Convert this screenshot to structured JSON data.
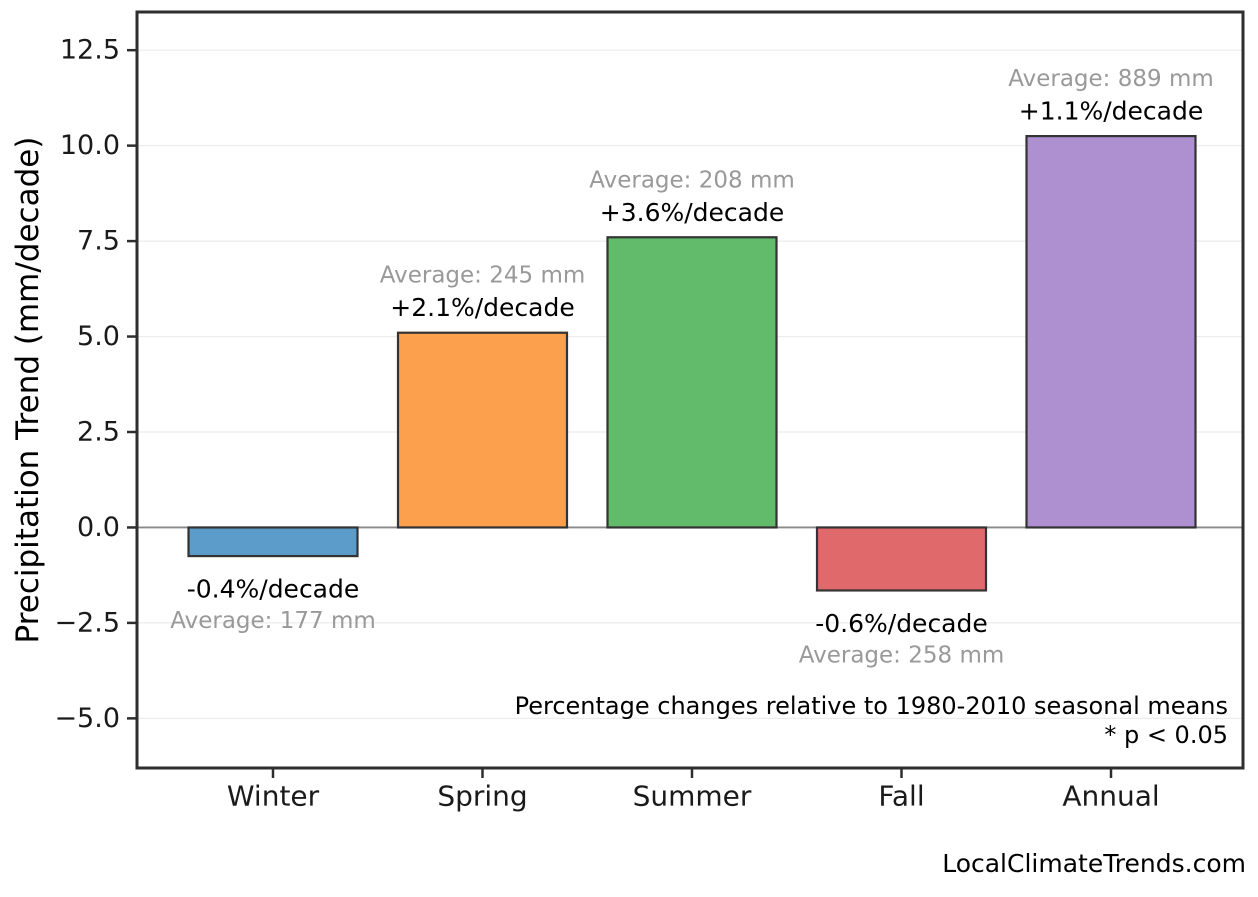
{
  "chart_data": {
    "type": "bar",
    "title": "",
    "xlabel": "",
    "ylabel": "Precipitation Trend (mm/decade)",
    "categories": [
      "Winter",
      "Spring",
      "Summer",
      "Fall",
      "Annual"
    ],
    "values": [
      -0.75,
      5.1,
      7.6,
      -1.65,
      10.25
    ],
    "bar_colors": [
      "#5B9CCA",
      "#FCA04E",
      "#62BB6A",
      "#E0696B",
      "#AE8FCF"
    ],
    "bar_edge_color": "#333333",
    "bar_labels": [
      {
        "pct": "-0.4%/decade",
        "avg": "Average: 177 mm"
      },
      {
        "pct": "+2.1%/decade",
        "avg": "Average: 245 mm"
      },
      {
        "pct": "+3.6%/decade",
        "avg": "Average: 208 mm"
      },
      {
        "pct": "-0.6%/decade",
        "avg": "Average: 258 mm"
      },
      {
        "pct": "+1.1%/decade",
        "avg": "Average: 889 mm"
      }
    ],
    "ylim": [
      -6.3,
      13.5
    ],
    "yticks": [
      12.5,
      10.0,
      7.5,
      5.0,
      2.5,
      0.0,
      -2.5,
      -5.0
    ],
    "ytick_labels": [
      "12.5",
      "10.0",
      "7.5",
      "5.0",
      "2.5",
      "0.0",
      "−2.5",
      "−5.0"
    ],
    "grid": true,
    "zero_line": true,
    "legend": "none",
    "annotations": [
      "Percentage changes relative to 1980-2010 seasonal means",
      "* p < 0.05"
    ],
    "colors": {
      "pct_label": "#000000",
      "avg_label": "#999999",
      "grid": "#ececec",
      "zero_line": "#8a8a8a",
      "spine": "#2e2e2e",
      "tick_label": "#1a1a1a",
      "annotation": "#000000"
    }
  },
  "footer": {
    "watermark": "LocalClimateTrends.com"
  }
}
